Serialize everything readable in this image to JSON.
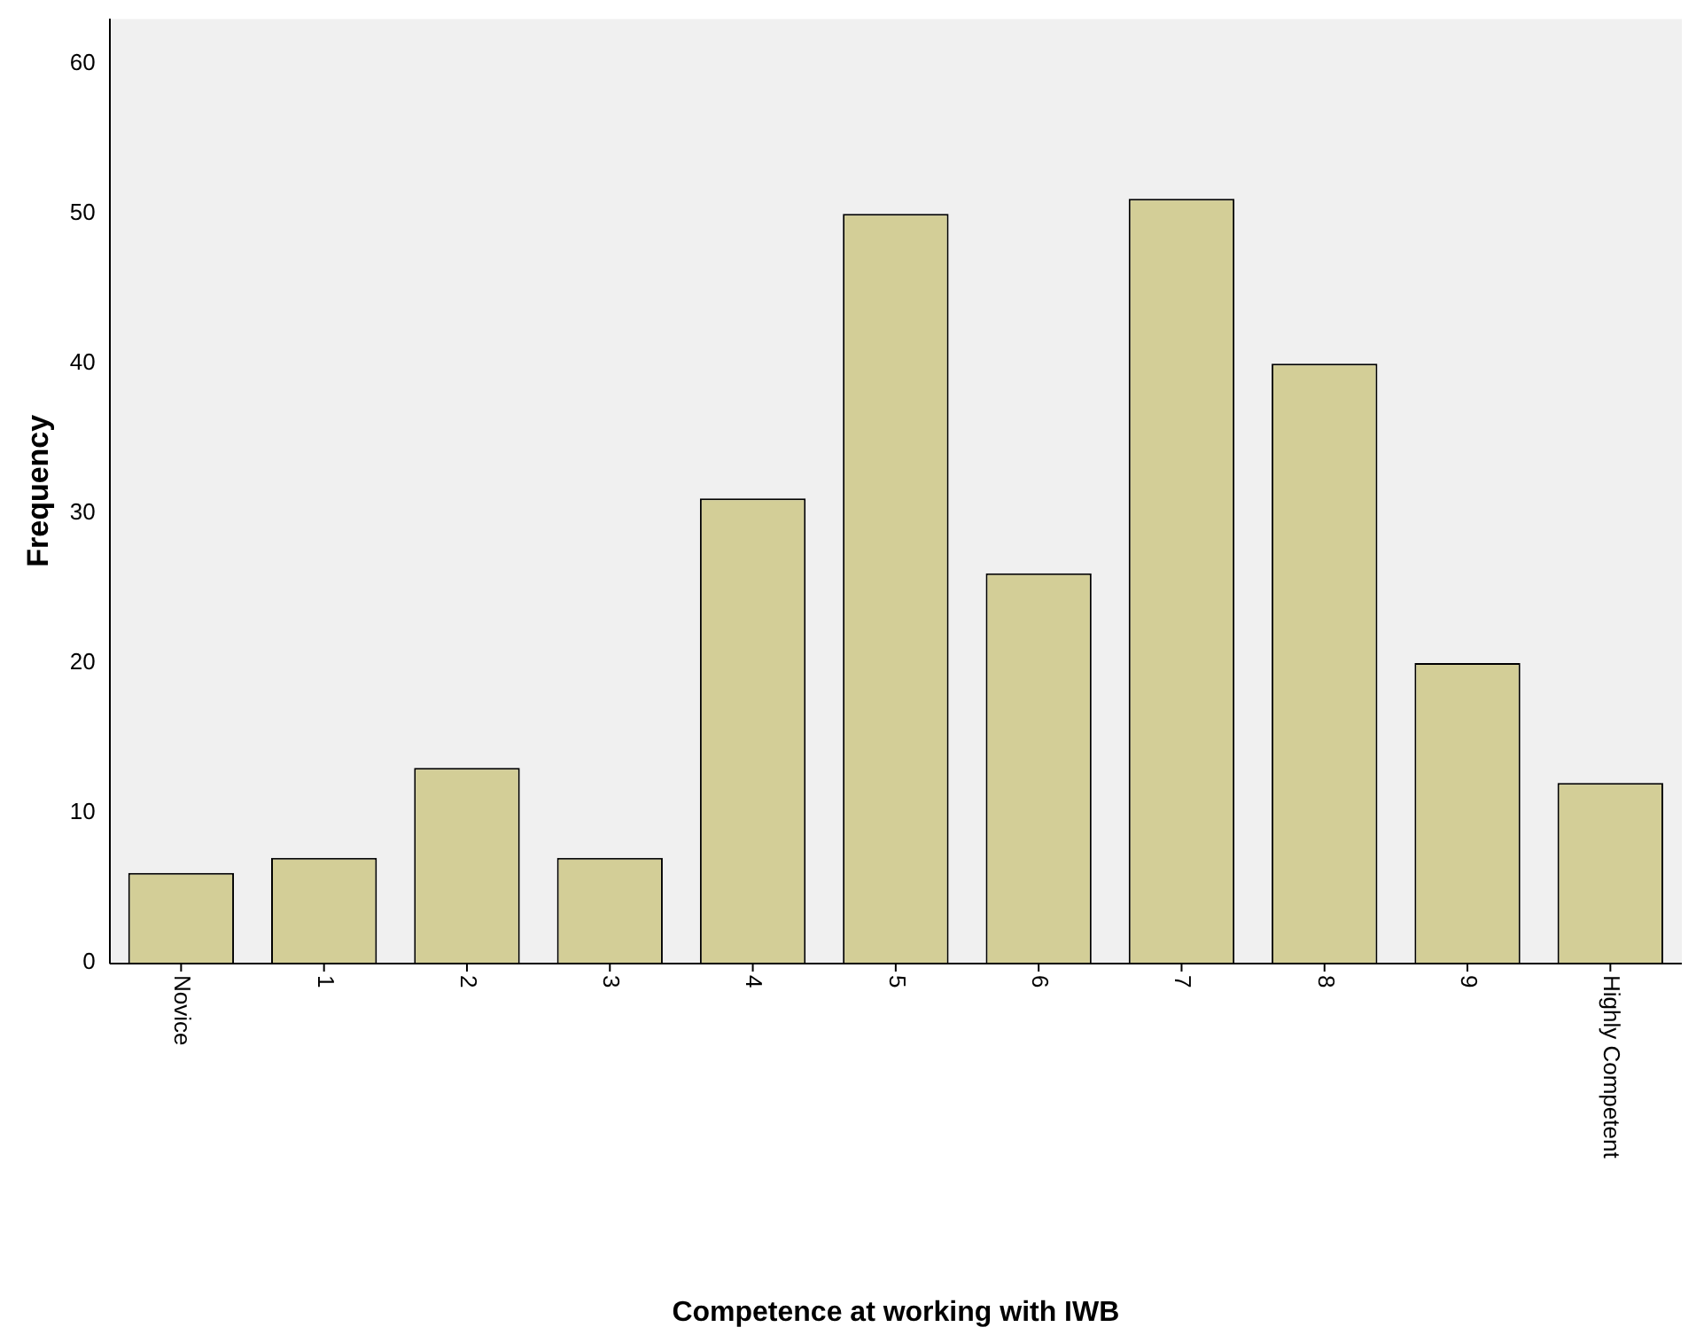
{
  "chart_data": {
    "type": "bar",
    "xlabel": "Competence at working with IWB",
    "ylabel": "Frequency",
    "categories": [
      "Novice",
      "1",
      "2",
      "3",
      "4",
      "5",
      "6",
      "7",
      "8",
      "9",
      "Highly Competent"
    ],
    "values": [
      6,
      7,
      13,
      7,
      31,
      50,
      26,
      51,
      40,
      20,
      12
    ],
    "color": "#d3ce97",
    "ylim": [
      0,
      63
    ],
    "yticks": [
      0,
      10,
      20,
      30,
      40,
      50,
      60
    ],
    "grid": false
  }
}
